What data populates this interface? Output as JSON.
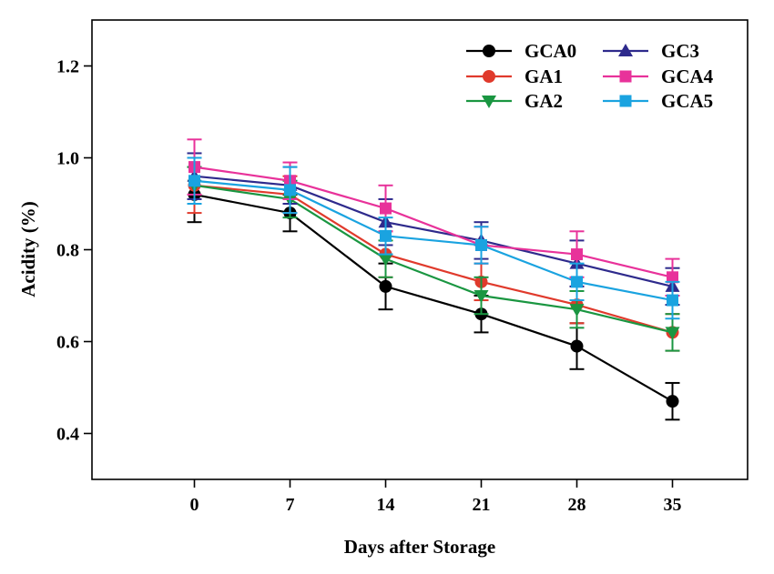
{
  "chart_data": {
    "type": "line",
    "xlabel": "Days after Storage",
    "ylabel": "Acidity (%)",
    "x": [
      0,
      7,
      14,
      21,
      28,
      35
    ],
    "x_ticks": [
      "0",
      "7",
      "14",
      "21",
      "28",
      "35"
    ],
    "xlim": [
      -7.5,
      40.5
    ],
    "ylim": [
      0.3,
      1.3
    ],
    "y_ticks": [
      "0.4",
      "0.6",
      "0.8",
      "1.0",
      "1.2"
    ],
    "y_tick_values": [
      0.4,
      0.6,
      0.8,
      1.0,
      1.2
    ],
    "grid": false,
    "legend_position": "top-right",
    "series": [
      {
        "name": "GCA0",
        "marker": "circle",
        "color": "#000000",
        "values": [
          0.92,
          0.88,
          0.72,
          0.66,
          0.59,
          0.47
        ],
        "errors": [
          0.06,
          0.04,
          0.05,
          0.04,
          0.05,
          0.04
        ]
      },
      {
        "name": "GA1",
        "marker": "circle",
        "color": "#e03a2c",
        "values": [
          0.94,
          0.92,
          0.79,
          0.73,
          0.68,
          0.62
        ],
        "errors": [
          0.06,
          0.04,
          0.05,
          0.04,
          0.04,
          0.04
        ]
      },
      {
        "name": "GA2",
        "marker": "triangle-down",
        "color": "#1a9641",
        "values": [
          0.94,
          0.91,
          0.78,
          0.7,
          0.67,
          0.62
        ],
        "errors": [
          0.04,
          0.04,
          0.04,
          0.04,
          0.04,
          0.04
        ]
      },
      {
        "name": "GC3",
        "marker": "triangle-up",
        "color": "#2e2a8c",
        "values": [
          0.96,
          0.94,
          0.86,
          0.82,
          0.77,
          0.72
        ],
        "errors": [
          0.05,
          0.04,
          0.05,
          0.04,
          0.05,
          0.04
        ]
      },
      {
        "name": "GCA4",
        "marker": "square",
        "color": "#e8329a",
        "values": [
          0.98,
          0.95,
          0.89,
          0.81,
          0.79,
          0.74
        ],
        "errors": [
          0.06,
          0.04,
          0.05,
          0.04,
          0.05,
          0.04
        ]
      },
      {
        "name": "GCA5",
        "marker": "square",
        "color": "#1aa3e0",
        "values": [
          0.95,
          0.93,
          0.83,
          0.81,
          0.73,
          0.69
        ],
        "errors": [
          0.05,
          0.05,
          0.04,
          0.04,
          0.04,
          0.04
        ]
      }
    ]
  }
}
